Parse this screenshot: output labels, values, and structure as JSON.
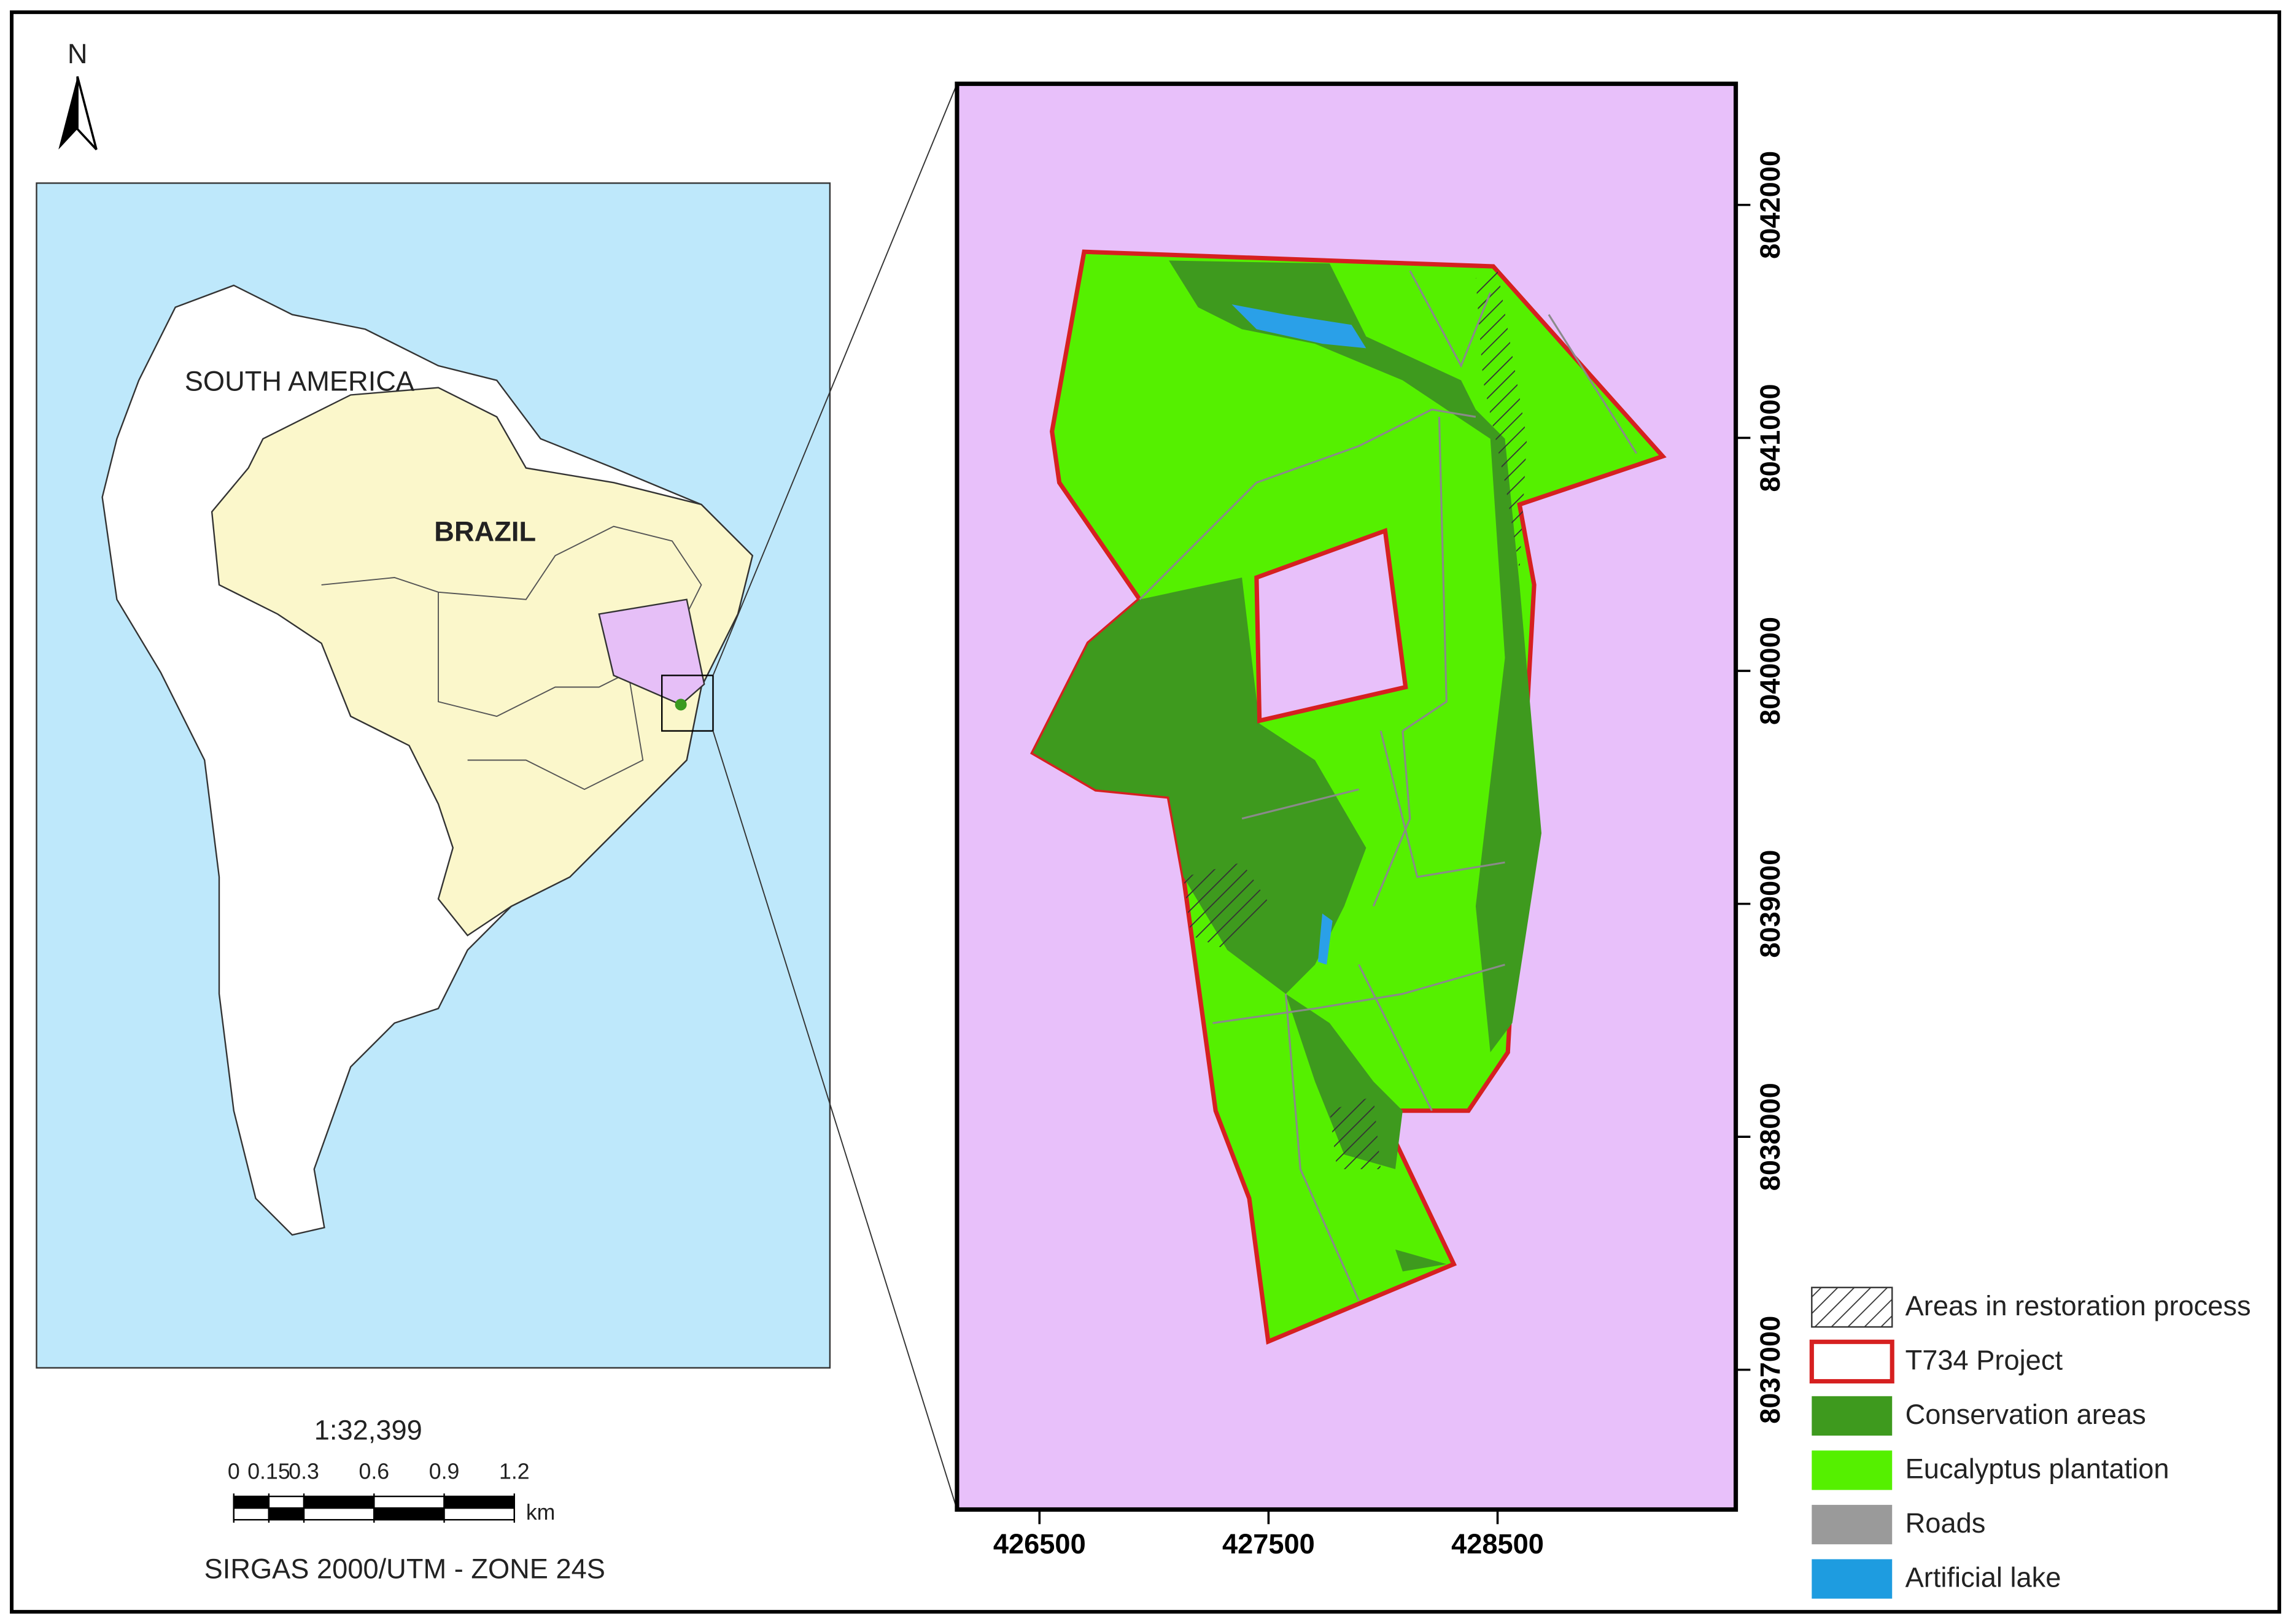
{
  "north_arrow": "N",
  "inset_map": {
    "continent": "SOUTH AMERICA",
    "country": "BRAZIL"
  },
  "scale": {
    "ratio": "1:32,399",
    "ticks": [
      0,
      0.15,
      0.3,
      0.6,
      0.9,
      1.2
    ],
    "unit": "km",
    "projection": "SIRGAS 2000/UTM - ZONE 24S"
  },
  "main_map": {
    "xlim": [
      426140,
      429540
    ],
    "ylim": [
      8036400,
      8042520
    ],
    "xticks": [
      426500,
      427500,
      428500
    ],
    "yticks": [
      8037000,
      8038000,
      8039000,
      8040000,
      8041000,
      8042000
    ]
  },
  "legend": [
    "Areas in restoration process",
    "T734 Project",
    "Conservation areas",
    "Eucalyptus plantation",
    "Roads",
    "Artificial lake"
  ]
}
